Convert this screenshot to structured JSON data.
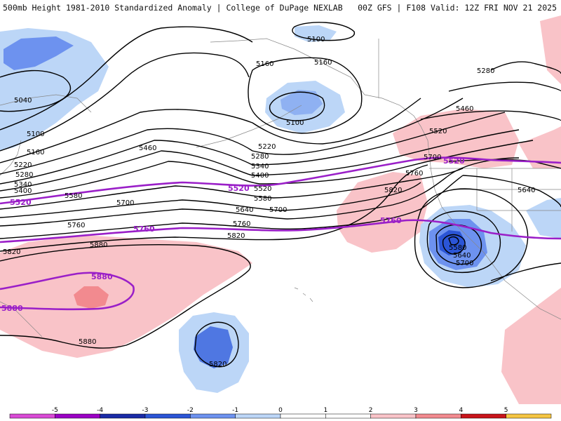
{
  "header": {
    "title_left": "500mb Height 1981-2010 Standardized Anomaly | College of DuPage NEXLAB",
    "title_right": "00Z GFS | F108 Valid: 12Z FRI NOV 21 2025"
  },
  "map": {
    "contour_labels": [
      {
        "id": "l5100a",
        "text": "5100"
      },
      {
        "id": "l5160a",
        "text": "5160"
      },
      {
        "id": "l5160b",
        "text": "5160"
      },
      {
        "id": "l5100b",
        "text": "5100"
      },
      {
        "id": "l5040",
        "text": "5040"
      },
      {
        "id": "l5100c",
        "text": "5100"
      },
      {
        "id": "l5160c",
        "text": "5160"
      },
      {
        "id": "l5220a",
        "text": "5220"
      },
      {
        "id": "l5280a",
        "text": "5280"
      },
      {
        "id": "l5340a",
        "text": "5340"
      },
      {
        "id": "l5400a",
        "text": "5400"
      },
      {
        "id": "l5460a",
        "text": "5460"
      },
      {
        "id": "l5220b",
        "text": "5220"
      },
      {
        "id": "l5280b",
        "text": "5280"
      },
      {
        "id": "l5340b",
        "text": "5340"
      },
      {
        "id": "l5400b",
        "text": "5400"
      },
      {
        "id": "l5520a",
        "text": "5520"
      },
      {
        "id": "l5580a",
        "text": "5580"
      },
      {
        "id": "l5580b",
        "text": "5580"
      },
      {
        "id": "l5700a",
        "text": "5700"
      },
      {
        "id": "l5640a",
        "text": "5640"
      },
      {
        "id": "l5700b",
        "text": "5700"
      },
      {
        "id": "l5760a",
        "text": "5760"
      },
      {
        "id": "l5760b",
        "text": "5760"
      },
      {
        "id": "l5820a",
        "text": "5820"
      },
      {
        "id": "l5820b",
        "text": "5820"
      },
      {
        "id": "l5880a",
        "text": "5880"
      },
      {
        "id": "l5880b",
        "text": "5880"
      },
      {
        "id": "l5820c",
        "text": "5820"
      },
      {
        "id": "l5280c",
        "text": "5280"
      },
      {
        "id": "l5460b",
        "text": "5460"
      },
      {
        "id": "l5520b",
        "text": "5520"
      },
      {
        "id": "l5700c",
        "text": "5700"
      },
      {
        "id": "l5760c",
        "text": "5760"
      },
      {
        "id": "l5820d",
        "text": "5820"
      },
      {
        "id": "l5640b",
        "text": "5640"
      },
      {
        "id": "l5580c",
        "text": "5580"
      },
      {
        "id": "l5640c",
        "text": "5640"
      },
      {
        "id": "l5700d",
        "text": "5700"
      }
    ],
    "highlight_labels": [
      {
        "id": "h5520a",
        "text": "5520"
      },
      {
        "id": "h5520b",
        "text": "5520"
      },
      {
        "id": "h5520c",
        "text": "5520"
      },
      {
        "id": "h5760a",
        "text": "5760"
      },
      {
        "id": "h5760b",
        "text": "5760"
      },
      {
        "id": "h5880a",
        "text": "5880"
      },
      {
        "id": "h5880b",
        "text": "5880"
      }
    ]
  },
  "colorbar": {
    "ticks": [
      "-5",
      "-4",
      "-3",
      "-2",
      "-1",
      "0",
      "1",
      "2",
      "3",
      "4",
      "5"
    ],
    "colors": [
      "#9b00c4",
      "#1a2aa6",
      "#2b55d6",
      "#6d92ef",
      "#bcd6f7",
      "#ffffff",
      "#ffffff",
      "#f9c3c8",
      "#f28a8f",
      "#c8141b",
      "#f5a524"
    ]
  }
}
